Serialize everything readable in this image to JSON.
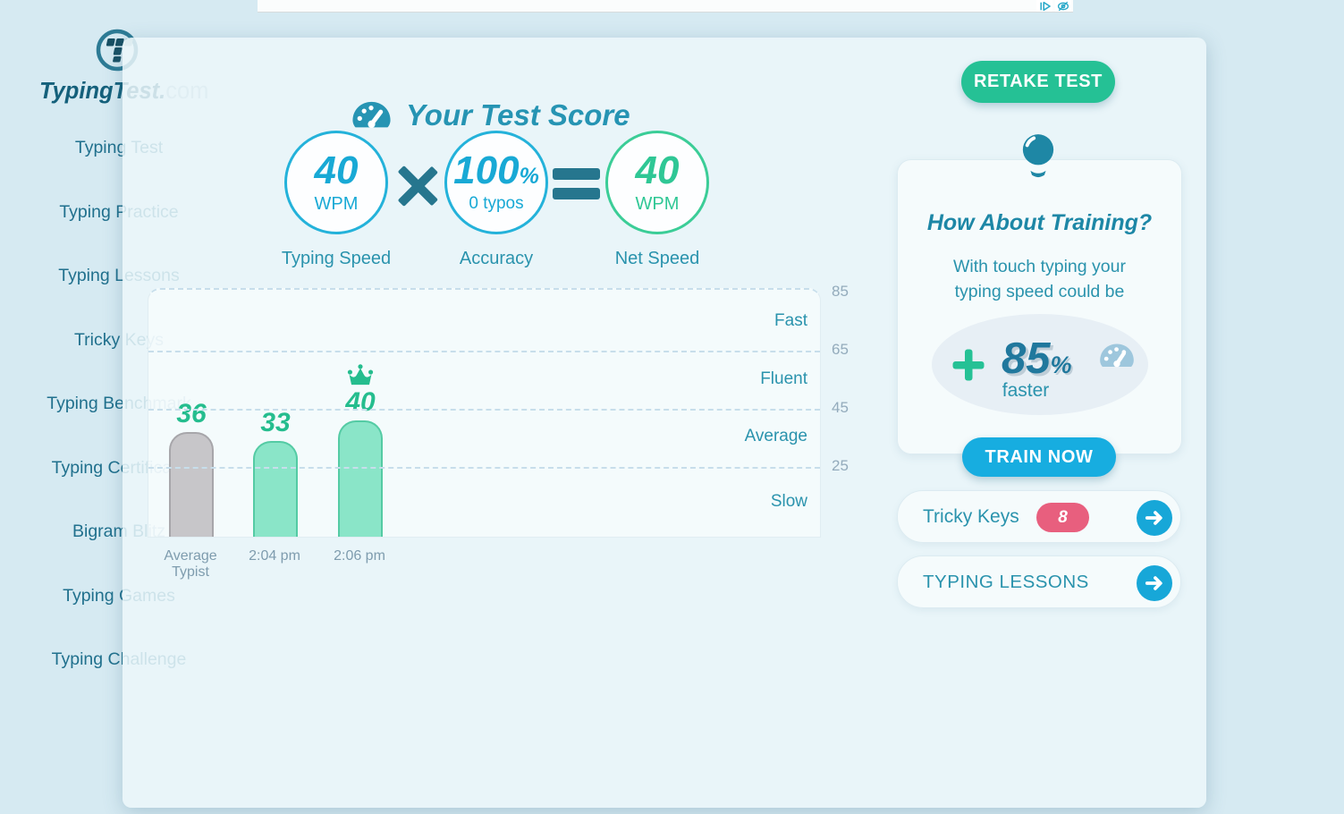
{
  "ad_bar": {
    "icons": [
      "adchoices-icon",
      "eye-icon"
    ]
  },
  "logo": {
    "brand": "TypingTest.",
    "tld": "com"
  },
  "sidebar": {
    "items": [
      {
        "label": "Typing Test"
      },
      {
        "label": "Typing Practice"
      },
      {
        "label": "Typing Lessons"
      },
      {
        "label": "Tricky Keys"
      },
      {
        "label": "Typing Benchmark"
      },
      {
        "label": "Typing Certificate"
      },
      {
        "label": "Bigram Blitz"
      },
      {
        "label": "Typing Games"
      },
      {
        "label": "Typing Challenge"
      }
    ]
  },
  "header": {
    "title": "Your Test Score",
    "retake_label": "RETAKE TEST"
  },
  "score": {
    "typing_speed": {
      "value": "40",
      "unit": "WPM",
      "label": "Typing Speed"
    },
    "accuracy": {
      "value": "100",
      "percent_sign": "%",
      "sub": "0 typos",
      "label": "Accuracy"
    },
    "net_speed": {
      "value": "40",
      "unit": "WPM",
      "label": "Net Speed"
    },
    "operators": {
      "multiply": "×",
      "equals": "="
    }
  },
  "chart_data": {
    "type": "bar",
    "categories": [
      "Average Typist",
      "2:04 pm",
      "2:06 pm"
    ],
    "values": [
      36,
      33,
      40
    ],
    "bar_colors": [
      "gray",
      "teal",
      "teal"
    ],
    "highlight_index": 2,
    "y_ticks": [
      85,
      65,
      45,
      25
    ],
    "zone_labels": [
      "Fast",
      "Fluent",
      "Average",
      "Slow"
    ],
    "ylim": [
      0,
      86
    ],
    "grid": "dashed",
    "legend": "none",
    "title": ""
  },
  "training": {
    "heading": "How About Training?",
    "body_line1": "With touch typing your",
    "body_line2": "typing speed could be",
    "plus": "+",
    "percent_value": "85",
    "percent_sign": "%",
    "faster_label": "faster",
    "train_button": "TRAIN NOW"
  },
  "shortcuts": {
    "tricky_keys": {
      "label": "Tricky Keys",
      "badge": "8"
    },
    "typing_lessons": {
      "label": "TYPING LESSONS"
    }
  },
  "colors": {
    "page_bg": "#d6eaf2",
    "teal_text": "#2a93ad",
    "dark_teal": "#14607b",
    "blue": "#18a9d5",
    "green": "#25c195",
    "train_blue": "#17ade0",
    "badge_pink": "#e85f7e",
    "bar_teal": "#8ae5c8",
    "bar_gray": "#c7c6c9"
  }
}
